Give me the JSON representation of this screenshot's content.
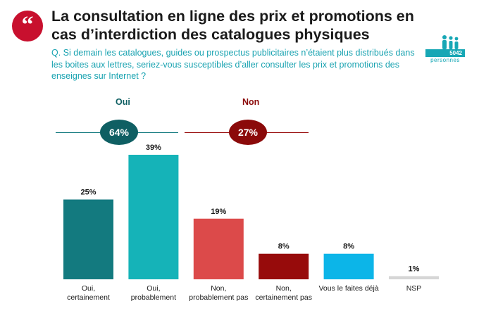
{
  "header": {
    "quote_glyph": "“",
    "title": "La consultation en ligne des prix et promotions en cas d’interdiction des catalogues physiques",
    "question": "Q. Si demain les catalogues, guides ou prospectus publicitaires n’étaient plus distribués dans les boites aux lettres, seriez-vous susceptibles d’aller consulter les prix et promotions des enseignes sur Internet ?",
    "respondents_count": "5042",
    "respondents_label": "personnes",
    "respondents_icon": "people-icon"
  },
  "groups": {
    "oui": {
      "label": "Oui",
      "total": "64%",
      "color": "#0f5f63"
    },
    "non": {
      "label": "Non",
      "total": "27%",
      "color": "#8b0a0a"
    }
  },
  "chart_data": {
    "type": "bar",
    "categories": [
      "Oui,\ncertainement",
      "Oui,\nprobablement",
      "Non,\nprobablement pas",
      "Non,\ncertainement pas",
      "Vous le faites déjà",
      "NSP"
    ],
    "values": [
      25,
      39,
      19,
      8,
      8,
      1
    ],
    "value_labels": [
      "25%",
      "39%",
      "19%",
      "8%",
      "8%",
      "1%"
    ],
    "colors": [
      "#137a7f",
      "#15b3b8",
      "#dc4a4a",
      "#970b0b",
      "#0cb5e8",
      "#d6d6d6"
    ],
    "ylim": [
      0,
      39
    ],
    "grid": false,
    "legend": "none"
  }
}
